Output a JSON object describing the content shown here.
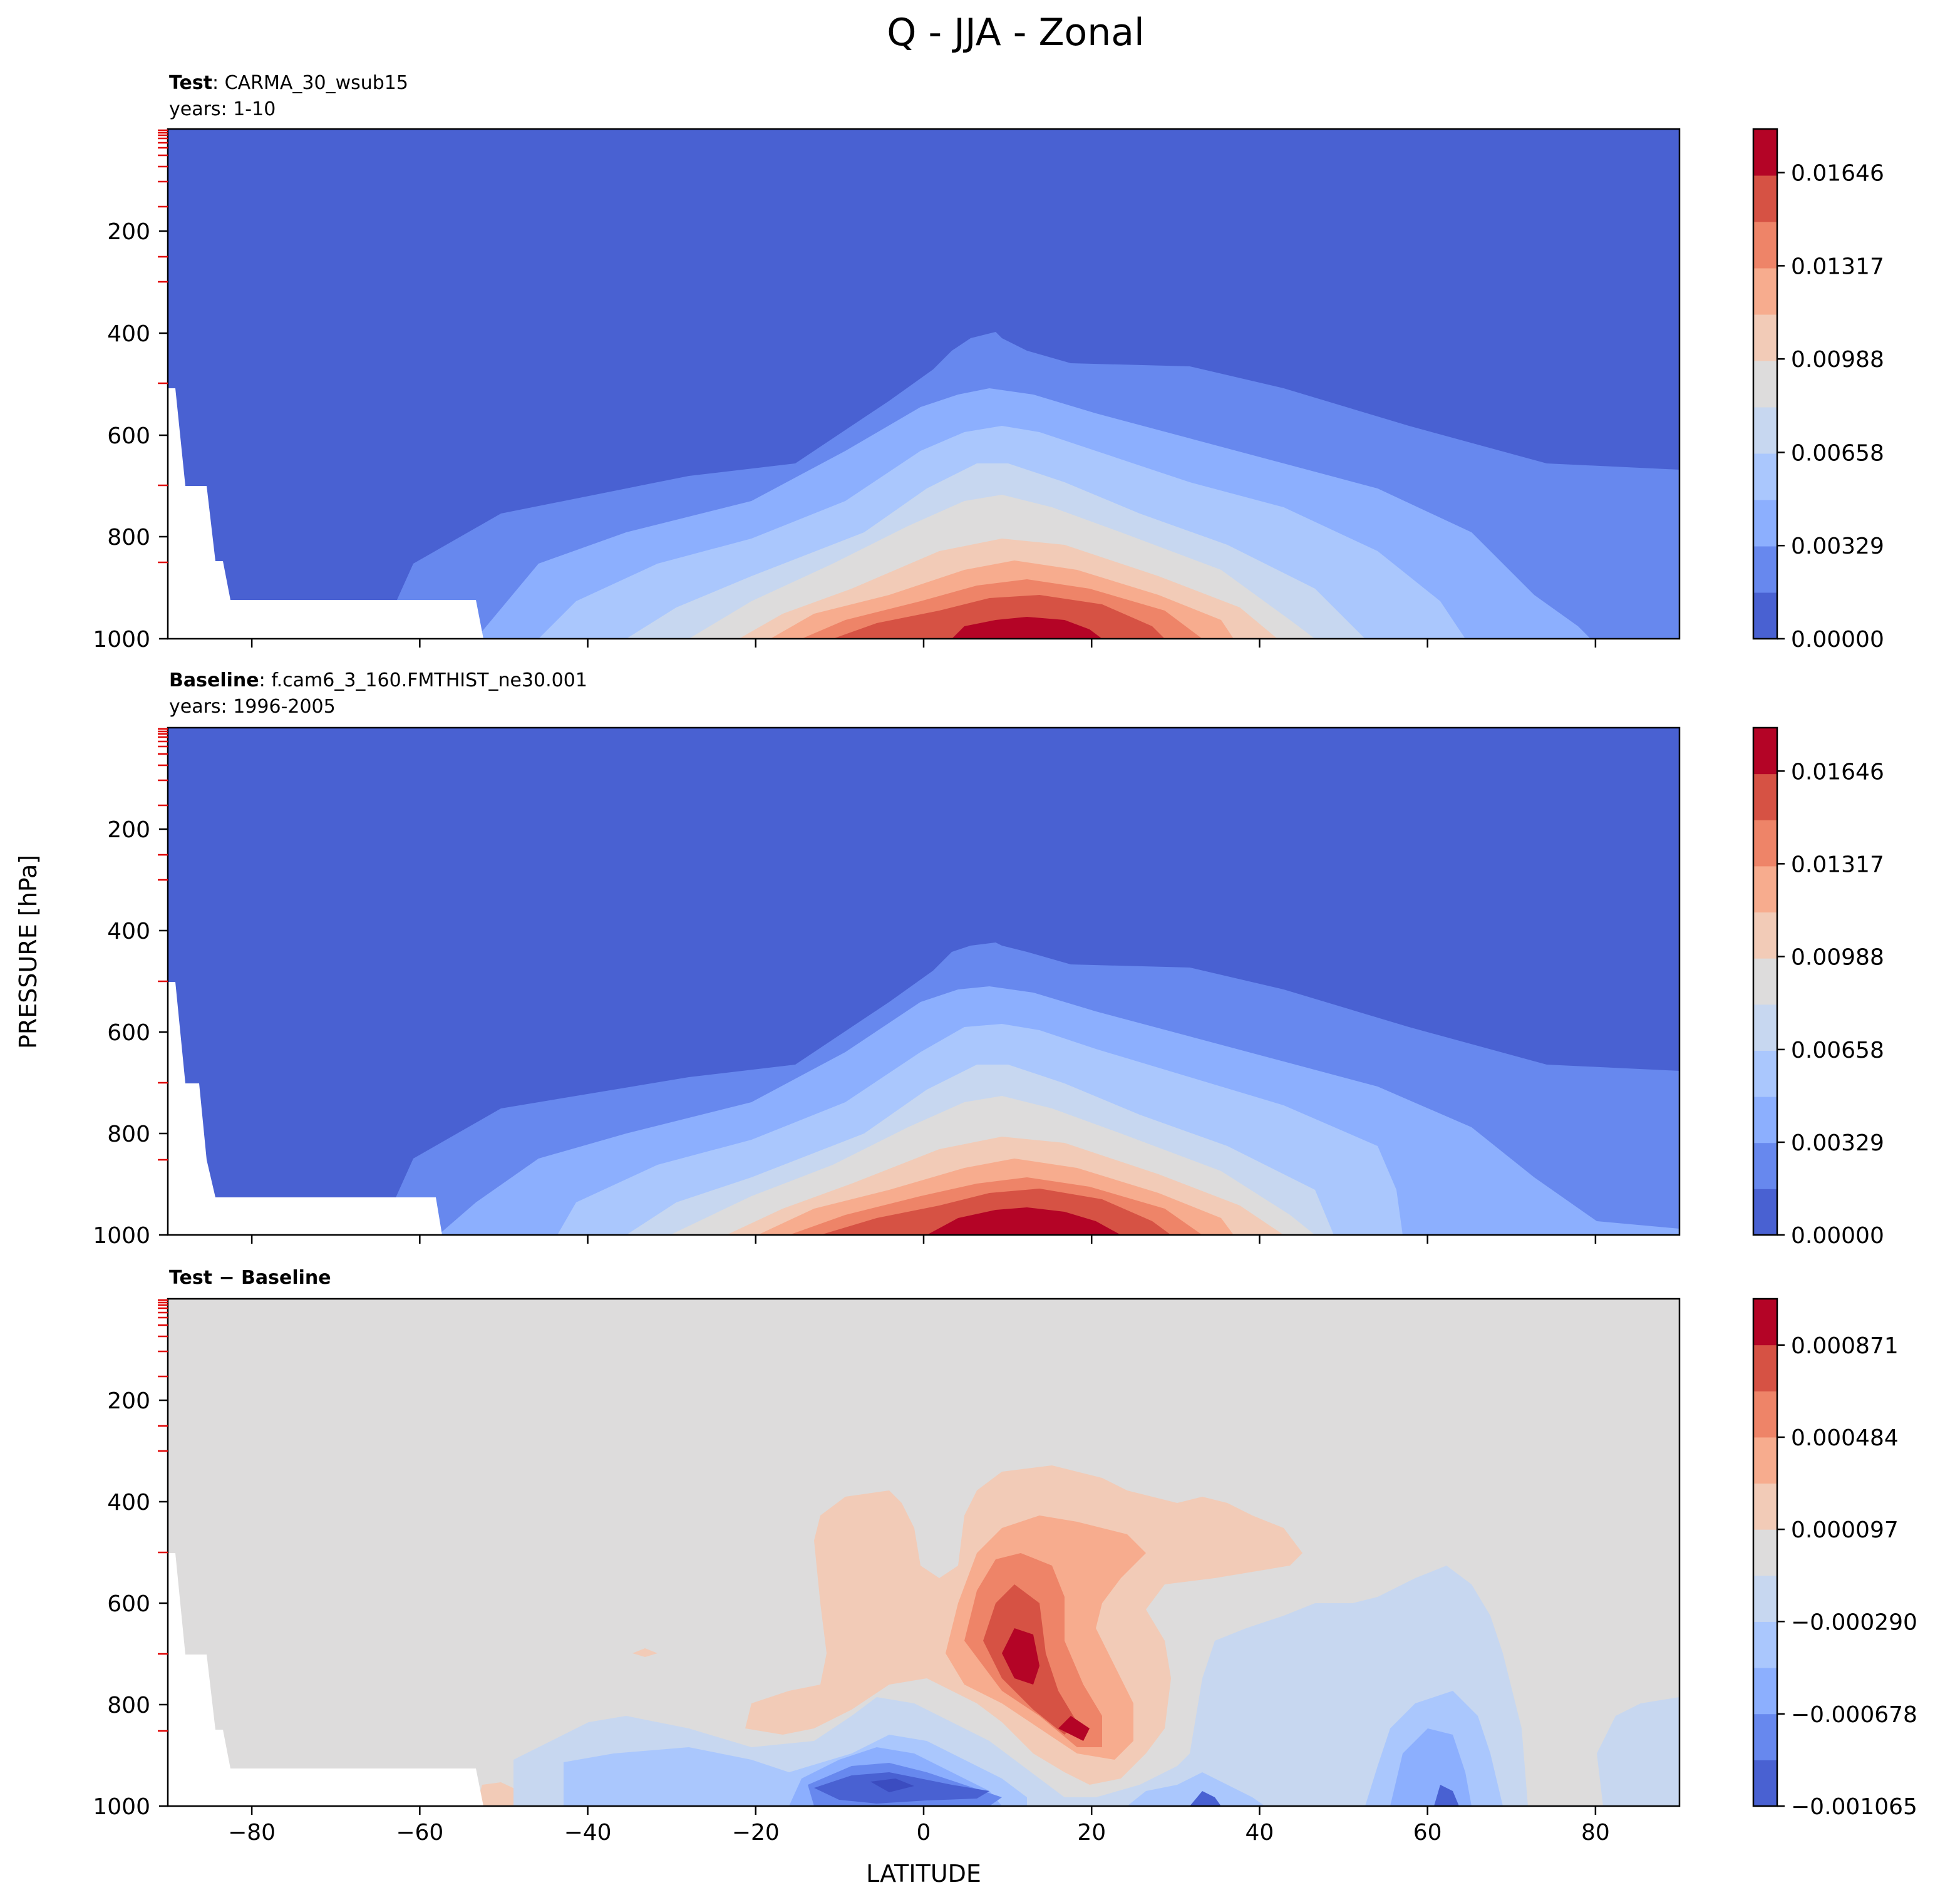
{
  "figure": {
    "title": "Q - JJA - Zonal",
    "xlabel": "LATITUDE",
    "ylabel": "PRESSURE [hPa]"
  },
  "chart_data": [
    {
      "type": "heatmap",
      "title_bold": "Test",
      "title_rest": ": CARMA_30_wsub15",
      "subtitle": "years: 1-10",
      "xlim": [
        -90,
        90
      ],
      "ylim": [
        1000,
        0
      ],
      "x_ticks": [
        -80,
        -60,
        -40,
        -20,
        0,
        20,
        40,
        60,
        80
      ],
      "y_ticks": [
        "200",
        "400",
        "600",
        "800",
        "1000"
      ],
      "show_x_tick_labels": false,
      "colorbar": {
        "colormap": "coolwarm",
        "range": [
          0.0,
          0.018
        ],
        "levels": 11,
        "tick_labels": [
          "0.00000",
          "0.00329",
          "0.00658",
          "0.00988",
          "0.01317",
          "0.01646"
        ]
      }
    },
    {
      "type": "heatmap",
      "title_bold": "Baseline",
      "title_rest": ": f.cam6_3_160.FMTHIST_ne30.001",
      "subtitle": "years: 1996-2005",
      "xlim": [
        -90,
        90
      ],
      "ylim": [
        1000,
        0
      ],
      "x_ticks": [
        -80,
        -60,
        -40,
        -20,
        0,
        20,
        40,
        60,
        80
      ],
      "y_ticks": [
        "200",
        "400",
        "600",
        "800",
        "1000"
      ],
      "show_x_tick_labels": false,
      "colorbar": {
        "colormap": "coolwarm",
        "range": [
          0.0,
          0.018
        ],
        "levels": 11,
        "tick_labels": [
          "0.00000",
          "0.00329",
          "0.00658",
          "0.00988",
          "0.01317",
          "0.01646"
        ]
      }
    },
    {
      "type": "heatmap",
      "title_bold": "Test − Baseline",
      "title_rest": "",
      "subtitle": "",
      "xlim": [
        -90,
        90
      ],
      "ylim": [
        1000,
        0
      ],
      "x_ticks": [
        -80,
        -60,
        -40,
        -20,
        0,
        20,
        40,
        60,
        80
      ],
      "x_tick_labels": [
        "−80",
        "−60",
        "−40",
        "−20",
        "0",
        "20",
        "40",
        "60",
        "80"
      ],
      "y_ticks": [
        "200",
        "400",
        "600",
        "800",
        "1000"
      ],
      "show_x_tick_labels": true,
      "colorbar": {
        "colormap": "coolwarm",
        "range": [
          -0.001065,
          0.001065
        ],
        "levels": 11,
        "tick_labels": [
          "−0.001065",
          "−0.000678",
          "−0.000290",
          "0.000097",
          "0.000484",
          "0.000871"
        ]
      }
    }
  ]
}
